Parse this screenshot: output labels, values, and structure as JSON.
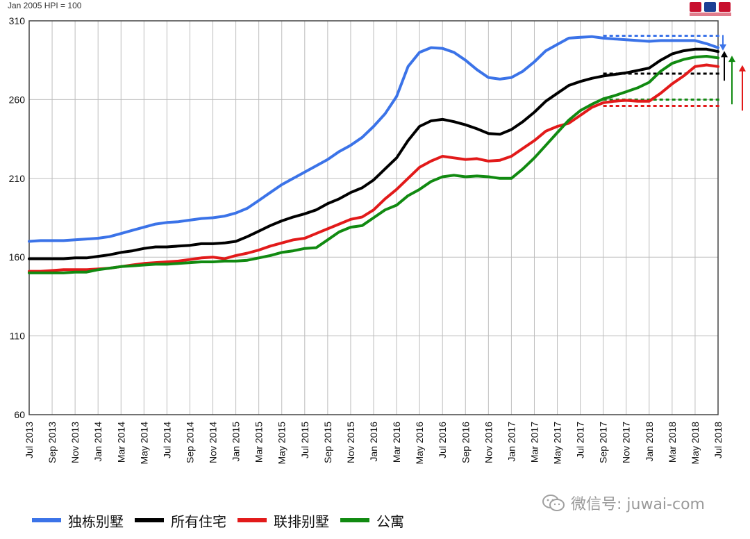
{
  "header": {
    "hpi_note": "Jan 2005 HPI = 100"
  },
  "watermark": {
    "text": "微信号: juwai-com",
    "icon": "wechat-icon"
  },
  "colors": {
    "detached": "#3b73e8",
    "all": "#000000",
    "townhouse": "#e21a1a",
    "apartment": "#118a11",
    "grid": "#bdbdbd"
  },
  "chart_data": {
    "type": "line",
    "title": "",
    "xlabel": "",
    "ylabel": "",
    "ylim": [
      60,
      310
    ],
    "yticks": [
      60,
      110,
      160,
      210,
      260,
      310
    ],
    "grid": true,
    "legend_position": "bottom",
    "x": [
      "Jul 2013",
      "Aug 2013",
      "Sep 2013",
      "Oct 2013",
      "Nov 2013",
      "Dec 2013",
      "Jan 2014",
      "Feb 2014",
      "Mar 2014",
      "Apr 2014",
      "May 2014",
      "Jun 2014",
      "Jul 2014",
      "Aug 2014",
      "Sep 2014",
      "Oct 2014",
      "Nov 2014",
      "Dec 2014",
      "Jan 2015",
      "Feb 2015",
      "Mar 2015",
      "Apr 2015",
      "May 2015",
      "Jun 2015",
      "Jul 2015",
      "Aug 2015",
      "Sep 2015",
      "Oct 2015",
      "Nov 2015",
      "Dec 2015",
      "Jan 2016",
      "Feb 2016",
      "Mar 2016",
      "Apr 2016",
      "May 2016",
      "Jun 2016",
      "Jul 2016",
      "Aug 2016",
      "Sep 2016",
      "Oct 2016",
      "Nov 2016",
      "Dec 2016",
      "Jan 2017",
      "Feb 2017",
      "Mar 2017",
      "Apr 2017",
      "May 2017",
      "Jun 2017",
      "Jul 2017",
      "Aug 2017",
      "Sep 2017",
      "Oct 2017",
      "Nov 2017",
      "Dec 2017",
      "Jan 2018",
      "Feb 2018",
      "Mar 2018",
      "Apr 2018",
      "May 2018",
      "Jun 2018",
      "Jul 2018"
    ],
    "x_tick_labels": [
      "Jul 2013",
      "Sep 2013",
      "Nov 2013",
      "Jan 2014",
      "Mar 2014",
      "May 2014",
      "Jul 2014",
      "Sep 2014",
      "Nov 2014",
      "Jan 2015",
      "Mar 2015",
      "May 2015",
      "Jul 2015",
      "Sep 2015",
      "Nov 2015",
      "Jan 2016",
      "Mar 2016",
      "May 2016",
      "Jul 2016",
      "Sep 2016",
      "Nov 2016",
      "Jan 2017",
      "Mar 2017",
      "May 2017",
      "Jul 2017",
      "Sep 2017",
      "Nov 2017",
      "Jan 2018",
      "Mar 2018",
      "May 2018",
      "Jul 2018"
    ],
    "series": [
      {
        "name": "独栋别墅",
        "color": "#3b73e8",
        "values": [
          170,
          170.5,
          170.5,
          170.5,
          171,
          171.5,
          172,
          173,
          175,
          177,
          179,
          181,
          182,
          182.5,
          183.5,
          184.5,
          185,
          186,
          188,
          191,
          196,
          201,
          206,
          210,
          214,
          218,
          222,
          227,
          231,
          236,
          243,
          251,
          262,
          281,
          290,
          293,
          292.5,
          290,
          285,
          279,
          274,
          273,
          274,
          278,
          284,
          291,
          295,
          299,
          299.5,
          300,
          299,
          298.5,
          298,
          297.5,
          297,
          297.5,
          297.5,
          297.5,
          297.5,
          295.5,
          293
        ]
      },
      {
        "name": "所有住宅",
        "color": "#000000",
        "values": [
          159,
          159,
          159,
          159,
          159.5,
          159.5,
          160.5,
          161.5,
          163,
          164,
          165.5,
          166.5,
          166.5,
          167,
          167.5,
          168.5,
          168.5,
          169,
          170,
          173,
          176.5,
          180,
          183,
          185.5,
          187.5,
          190,
          194,
          197,
          201,
          204,
          209,
          216,
          223,
          234,
          243,
          246.5,
          247.5,
          246,
          244,
          241.5,
          238.5,
          238,
          241,
          246,
          252,
          259,
          264,
          269,
          271.5,
          273.5,
          275,
          276,
          277,
          278.5,
          280,
          285,
          289,
          291,
          292,
          292,
          290.5
        ]
      },
      {
        "name": "联排别墅",
        "color": "#e21a1a",
        "values": [
          151,
          151,
          151.5,
          152,
          152,
          152,
          152.5,
          153,
          154,
          155,
          156,
          156.5,
          157,
          157.5,
          158.5,
          159.5,
          160,
          159,
          161,
          162.5,
          164.5,
          167,
          169,
          171,
          172,
          175,
          178,
          181,
          184,
          185.5,
          190,
          197,
          203,
          210,
          217,
          221,
          224,
          223,
          222,
          222.5,
          221,
          221.5,
          224,
          229,
          234,
          240,
          243,
          245,
          250,
          255,
          258,
          259,
          259.5,
          259,
          259,
          264,
          270,
          275,
          281,
          282,
          281
        ]
      },
      {
        "name": "公寓",
        "color": "#118a11",
        "values": [
          150,
          150,
          150,
          150,
          150.5,
          150.5,
          152,
          153,
          154,
          154.5,
          155,
          155.5,
          155.5,
          156,
          156.5,
          157,
          157,
          157.5,
          157.5,
          158,
          159.5,
          161,
          163,
          164,
          165.5,
          166,
          171,
          176,
          179,
          180,
          185,
          190,
          193,
          199,
          203,
          208,
          211,
          212,
          211,
          211.5,
          211,
          210,
          210,
          216,
          223,
          231,
          239,
          247,
          253,
          257,
          260.5,
          262.5,
          265,
          267.5,
          271,
          278,
          283,
          285.5,
          287,
          287.5,
          286.5
        ]
      }
    ],
    "reference_lines": [
      {
        "series": "独栋别墅",
        "y": 300.5,
        "from": "Sep 2017",
        "color": "#3b73e8",
        "arrow": "down"
      },
      {
        "series": "所有住宅",
        "y": 276.5,
        "from": "Sep 2017",
        "color": "#000000",
        "arrow": "up"
      },
      {
        "series": "公寓",
        "y": 260,
        "from": "Sep 2017",
        "color": "#118a11",
        "arrow": "up"
      },
      {
        "series": "联排别墅",
        "y": 256,
        "from": "Sep 2017",
        "color": "#e21a1a",
        "arrow": "up"
      }
    ]
  }
}
